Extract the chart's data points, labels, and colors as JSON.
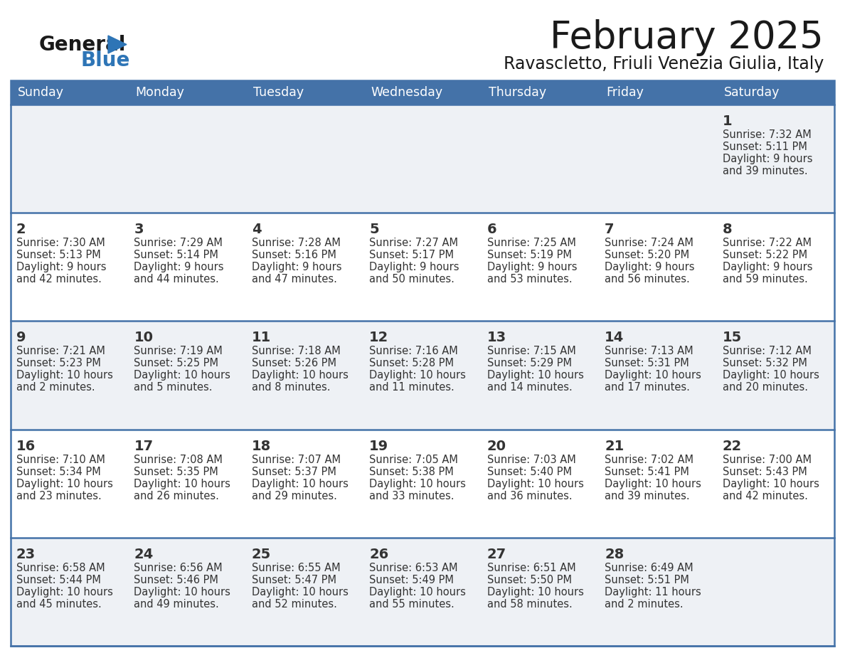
{
  "title": "February 2025",
  "subtitle": "Ravascletto, Friuli Venezia Giulia, Italy",
  "days_of_week": [
    "Sunday",
    "Monday",
    "Tuesday",
    "Wednesday",
    "Thursday",
    "Friday",
    "Saturday"
  ],
  "header_bg": "#4472a8",
  "header_text": "#ffffff",
  "row_bg_odd": "#eef1f5",
  "row_bg_even": "#ffffff",
  "border_color": "#4472a8",
  "text_color": "#333333",
  "day_num_color": "#333333",
  "logo_general_color": "#1a1a1a",
  "logo_blue_color": "#2e75b6",
  "calendar": [
    [
      null,
      null,
      null,
      null,
      null,
      null,
      {
        "day": 1,
        "sunrise": "7:32 AM",
        "sunset": "5:11 PM",
        "daylight_line1": "9 hours",
        "daylight_line2": "and 39 minutes."
      }
    ],
    [
      {
        "day": 2,
        "sunrise": "7:30 AM",
        "sunset": "5:13 PM",
        "daylight_line1": "9 hours",
        "daylight_line2": "and 42 minutes."
      },
      {
        "day": 3,
        "sunrise": "7:29 AM",
        "sunset": "5:14 PM",
        "daylight_line1": "9 hours",
        "daylight_line2": "and 44 minutes."
      },
      {
        "day": 4,
        "sunrise": "7:28 AM",
        "sunset": "5:16 PM",
        "daylight_line1": "9 hours",
        "daylight_line2": "and 47 minutes."
      },
      {
        "day": 5,
        "sunrise": "7:27 AM",
        "sunset": "5:17 PM",
        "daylight_line1": "9 hours",
        "daylight_line2": "and 50 minutes."
      },
      {
        "day": 6,
        "sunrise": "7:25 AM",
        "sunset": "5:19 PM",
        "daylight_line1": "9 hours",
        "daylight_line2": "and 53 minutes."
      },
      {
        "day": 7,
        "sunrise": "7:24 AM",
        "sunset": "5:20 PM",
        "daylight_line1": "9 hours",
        "daylight_line2": "and 56 minutes."
      },
      {
        "day": 8,
        "sunrise": "7:22 AM",
        "sunset": "5:22 PM",
        "daylight_line1": "9 hours",
        "daylight_line2": "and 59 minutes."
      }
    ],
    [
      {
        "day": 9,
        "sunrise": "7:21 AM",
        "sunset": "5:23 PM",
        "daylight_line1": "10 hours",
        "daylight_line2": "and 2 minutes."
      },
      {
        "day": 10,
        "sunrise": "7:19 AM",
        "sunset": "5:25 PM",
        "daylight_line1": "10 hours",
        "daylight_line2": "and 5 minutes."
      },
      {
        "day": 11,
        "sunrise": "7:18 AM",
        "sunset": "5:26 PM",
        "daylight_line1": "10 hours",
        "daylight_line2": "and 8 minutes."
      },
      {
        "day": 12,
        "sunrise": "7:16 AM",
        "sunset": "5:28 PM",
        "daylight_line1": "10 hours",
        "daylight_line2": "and 11 minutes."
      },
      {
        "day": 13,
        "sunrise": "7:15 AM",
        "sunset": "5:29 PM",
        "daylight_line1": "10 hours",
        "daylight_line2": "and 14 minutes."
      },
      {
        "day": 14,
        "sunrise": "7:13 AM",
        "sunset": "5:31 PM",
        "daylight_line1": "10 hours",
        "daylight_line2": "and 17 minutes."
      },
      {
        "day": 15,
        "sunrise": "7:12 AM",
        "sunset": "5:32 PM",
        "daylight_line1": "10 hours",
        "daylight_line2": "and 20 minutes."
      }
    ],
    [
      {
        "day": 16,
        "sunrise": "7:10 AM",
        "sunset": "5:34 PM",
        "daylight_line1": "10 hours",
        "daylight_line2": "and 23 minutes."
      },
      {
        "day": 17,
        "sunrise": "7:08 AM",
        "sunset": "5:35 PM",
        "daylight_line1": "10 hours",
        "daylight_line2": "and 26 minutes."
      },
      {
        "day": 18,
        "sunrise": "7:07 AM",
        "sunset": "5:37 PM",
        "daylight_line1": "10 hours",
        "daylight_line2": "and 29 minutes."
      },
      {
        "day": 19,
        "sunrise": "7:05 AM",
        "sunset": "5:38 PM",
        "daylight_line1": "10 hours",
        "daylight_line2": "and 33 minutes."
      },
      {
        "day": 20,
        "sunrise": "7:03 AM",
        "sunset": "5:40 PM",
        "daylight_line1": "10 hours",
        "daylight_line2": "and 36 minutes."
      },
      {
        "day": 21,
        "sunrise": "7:02 AM",
        "sunset": "5:41 PM",
        "daylight_line1": "10 hours",
        "daylight_line2": "and 39 minutes."
      },
      {
        "day": 22,
        "sunrise": "7:00 AM",
        "sunset": "5:43 PM",
        "daylight_line1": "10 hours",
        "daylight_line2": "and 42 minutes."
      }
    ],
    [
      {
        "day": 23,
        "sunrise": "6:58 AM",
        "sunset": "5:44 PM",
        "daylight_line1": "10 hours",
        "daylight_line2": "and 45 minutes."
      },
      {
        "day": 24,
        "sunrise": "6:56 AM",
        "sunset": "5:46 PM",
        "daylight_line1": "10 hours",
        "daylight_line2": "and 49 minutes."
      },
      {
        "day": 25,
        "sunrise": "6:55 AM",
        "sunset": "5:47 PM",
        "daylight_line1": "10 hours",
        "daylight_line2": "and 52 minutes."
      },
      {
        "day": 26,
        "sunrise": "6:53 AM",
        "sunset": "5:49 PM",
        "daylight_line1": "10 hours",
        "daylight_line2": "and 55 minutes."
      },
      {
        "day": 27,
        "sunrise": "6:51 AM",
        "sunset": "5:50 PM",
        "daylight_line1": "10 hours",
        "daylight_line2": "and 58 minutes."
      },
      {
        "day": 28,
        "sunrise": "6:49 AM",
        "sunset": "5:51 PM",
        "daylight_line1": "11 hours",
        "daylight_line2": "and 2 minutes."
      },
      null
    ]
  ]
}
